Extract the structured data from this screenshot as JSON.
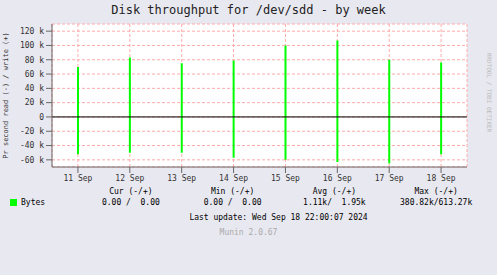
{
  "chart_data": {
    "type": "bar",
    "title": "Disk throughput for /dev/sdd - by week",
    "y_label": "Pr second read (-) / write (+)",
    "categories": [
      "11 Sep",
      "12 Sep",
      "13 Sep",
      "14 Sep",
      "15 Sep",
      "16 Sep",
      "17 Sep",
      "18 Sep"
    ],
    "series": [
      {
        "name": "Bytes",
        "color": "#00ff00",
        "values": [
          70000,
          83000,
          75000,
          79000,
          100000,
          107000,
          80000,
          76000
        ],
        "negative_values": [
          -52000,
          -50000,
          -50000,
          -57000,
          -60000,
          -63000,
          -65000,
          -52000
        ]
      }
    ],
    "ylim": [
      -70000,
      130000
    ],
    "yticks": [
      {
        "value": -60000,
        "label": "-60 k"
      },
      {
        "value": -40000,
        "label": "-40 k"
      },
      {
        "value": -20000,
        "label": "-20 k"
      },
      0,
      {
        "value": 20000,
        "label": "20 k"
      },
      {
        "value": 40000,
        "label": "40 k"
      },
      {
        "value": 60000,
        "label": "60 k"
      },
      {
        "value": 80000,
        "label": "80 k"
      },
      {
        "value": 100000,
        "label": "100 k"
      },
      {
        "value": 120000,
        "label": "120 k"
      }
    ],
    "grid": true,
    "stats": {
      "headers": [
        "Cur (-/+)",
        "Min (-/+)",
        "Avg (-/+)",
        "Max (-/+)"
      ],
      "values": [
        "0.00 /  0.00",
        "0.00 /  0.00",
        "1.11k/  1.95k",
        "380.82k/613.27k"
      ]
    },
    "annotations": [
      "Last update: Wed Sep 18 22:00:07 2024",
      "Munin 2.0.67",
      "RRDTOOL / TOBI OETIKER"
    ]
  }
}
